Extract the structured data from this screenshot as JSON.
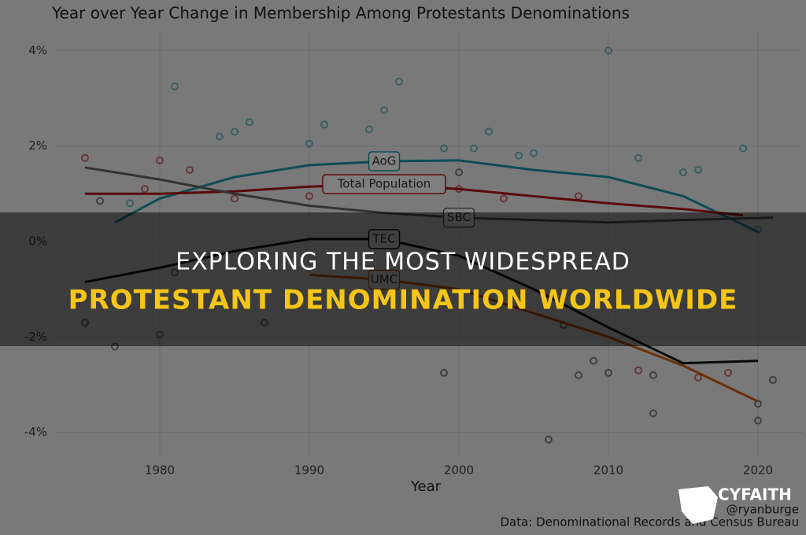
{
  "chart_data": {
    "type": "line",
    "title": "Year over Year Change in Membership Among Protestants Denominations",
    "x_label": "Year",
    "caption": "Data: Denominational Records and Census Bureau",
    "credit": "@ryanburge",
    "xlim": [
      1973,
      2023
    ],
    "xticks": [
      1980,
      1990,
      2000,
      2010,
      2020
    ],
    "ylim": [
      -4.5,
      4.4
    ],
    "yticks": [
      {
        "value": -4,
        "label": "-4%"
      },
      {
        "value": -2,
        "label": "-2%"
      },
      {
        "value": 0,
        "label": "0%"
      },
      {
        "value": 2,
        "label": "2%"
      },
      {
        "value": 4,
        "label": "4%"
      }
    ],
    "grid": true,
    "series": [
      {
        "name": "AoG",
        "color": "#1b98ad",
        "x": [
          1977,
          1980,
          1985,
          1990,
          1995,
          2000,
          2005,
          2010,
          2015,
          2020
        ],
        "values": [
          0.4,
          0.9,
          1.35,
          1.6,
          1.68,
          1.7,
          1.5,
          1.35,
          0.95,
          0.2
        ]
      },
      {
        "name": "Total Population",
        "color": "#b5121b",
        "x": [
          1975,
          1980,
          1985,
          1990,
          1995,
          2000,
          2005,
          2010,
          2015,
          2019
        ],
        "values": [
          1.0,
          1.0,
          1.05,
          1.15,
          1.2,
          1.1,
          0.95,
          0.8,
          0.68,
          0.55
        ]
      },
      {
        "name": "SBC",
        "color": "#666666",
        "x": [
          1975,
          1980,
          1985,
          1990,
          1995,
          2000,
          2005,
          2010,
          2015,
          2021
        ],
        "values": [
          1.55,
          1.3,
          1.0,
          0.75,
          0.6,
          0.5,
          0.45,
          0.4,
          0.45,
          0.5
        ]
      },
      {
        "name": "TEC",
        "color": "#111111",
        "x": [
          1975,
          1980,
          1985,
          1990,
          1995,
          2000,
          2005,
          2010,
          2015,
          2020
        ],
        "values": [
          -0.85,
          -0.55,
          -0.2,
          0.05,
          0.05,
          -0.3,
          -1.0,
          -1.8,
          -2.55,
          -2.5
        ]
      },
      {
        "name": "UMC",
        "color": "#d95f0e",
        "x": [
          1990,
          1995,
          2000,
          2005,
          2010,
          2015,
          2020
        ],
        "values": [
          -0.7,
          -0.8,
          -1.0,
          -1.5,
          -2.0,
          -2.6,
          -3.35
        ]
      }
    ],
    "points": [
      {
        "color": "#1b98ad",
        "x": [
          1978,
          1981,
          1984,
          1985,
          1986,
          1990,
          1991,
          1994,
          1995,
          1996,
          1999,
          2001,
          2002,
          2004,
          2005,
          2010,
          2012,
          2015,
          2016,
          2019,
          2020
        ],
        "values": [
          0.8,
          3.25,
          2.2,
          2.3,
          2.5,
          2.05,
          2.45,
          2.35,
          2.75,
          3.35,
          1.95,
          1.95,
          2.3,
          1.8,
          1.85,
          4.0,
          1.75,
          1.45,
          1.5,
          1.95,
          0.25
        ]
      },
      {
        "color": "#b5121b",
        "x": [
          1975,
          1979,
          1980,
          1982,
          1985,
          1990,
          1997,
          2000,
          2003,
          2008,
          2012,
          2016,
          2018
        ],
        "values": [
          1.75,
          1.1,
          1.7,
          1.5,
          0.9,
          0.95,
          1.25,
          1.1,
          0.9,
          0.95,
          -2.7,
          -2.85,
          -2.75
        ]
      },
      {
        "color": "#333333",
        "x": [
          1975,
          1976,
          1977,
          1980,
          1981,
          1987,
          1999,
          2000,
          2006,
          2007,
          2008,
          2009,
          2010,
          2013,
          2013,
          2020,
          2020,
          2021
        ],
        "values": [
          -1.7,
          0.85,
          -2.2,
          -1.95,
          -0.65,
          -1.7,
          -2.75,
          1.45,
          -4.15,
          -1.75,
          -2.8,
          -2.5,
          -2.75,
          -3.6,
          -2.8,
          -3.75,
          -3.4,
          -2.9
        ]
      }
    ]
  },
  "banner": {
    "line1": "EXPLORING THE MOST WIDESPREAD",
    "line2": "PROTESTANT DENOMINATION WORLDWIDE"
  },
  "logo": {
    "name": "CYFAITH"
  }
}
